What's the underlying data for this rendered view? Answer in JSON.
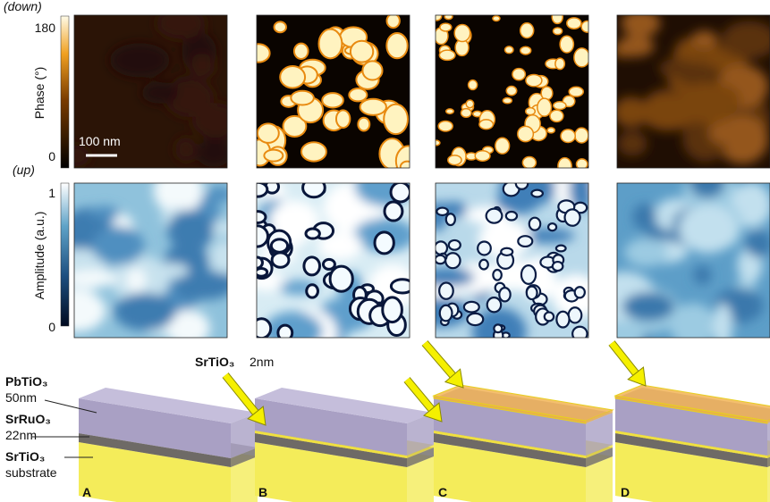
{
  "phase_scale": {
    "top_note": "(down)",
    "max": "180",
    "label": "Phase (°)",
    "min": "0",
    "bottom_note": "(up)"
  },
  "scale_bar": "100 nm",
  "amplitude_scale": {
    "max": "1",
    "label": "Amplitude (a.u.)",
    "min": "0"
  },
  "layers": [
    {
      "name": "PbTiO₃",
      "thickness": "50nm"
    },
    {
      "name": "SrRuO₃",
      "thickness": "22nm"
    },
    {
      "name": "SrTiO₃",
      "thickness": "substrate"
    }
  ],
  "cap_layer": {
    "name": "SrTiO₃",
    "thickness": "2nm"
  },
  "panels": [
    "A",
    "B",
    "C",
    "D"
  ]
}
